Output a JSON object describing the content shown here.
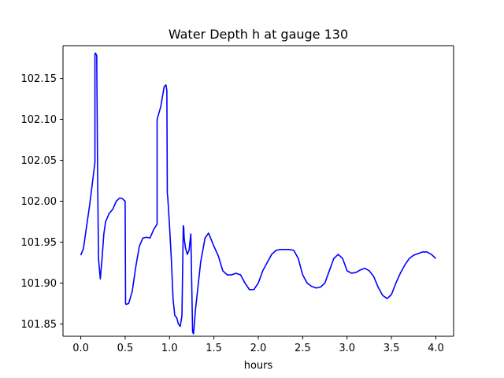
{
  "chart_data": {
    "type": "line",
    "title": "Water Depth h at gauge 130",
    "xlabel": "hours",
    "ylabel": "",
    "xlim": [
      -0.2,
      4.2
    ],
    "ylim": [
      101.835,
      102.19
    ],
    "x_ticks": [
      0.0,
      0.5,
      1.0,
      1.5,
      2.0,
      2.5,
      3.0,
      3.5,
      4.0
    ],
    "x_tick_labels": [
      "0.0",
      "0.5",
      "1.0",
      "1.5",
      "2.0",
      "2.5",
      "3.0",
      "3.5",
      "4.0"
    ],
    "y_ticks": [
      101.85,
      101.9,
      101.95,
      102.0,
      102.05,
      102.1,
      102.15
    ],
    "y_tick_labels": [
      "101.85",
      "101.90",
      "101.95",
      "102.00",
      "102.05",
      "102.10",
      "102.15"
    ],
    "grid": false,
    "series": [
      {
        "color": "#0000ff",
        "x": [
          0.0,
          0.03,
          0.06,
          0.1,
          0.14,
          0.16,
          0.16,
          0.165,
          0.18,
          0.19,
          0.2,
          0.22,
          0.24,
          0.26,
          0.28,
          0.32,
          0.36,
          0.4,
          0.44,
          0.47,
          0.5,
          0.505,
          0.51,
          0.54,
          0.58,
          0.62,
          0.66,
          0.7,
          0.74,
          0.78,
          0.82,
          0.86,
          0.86,
          0.9,
          0.94,
          0.96,
          0.97,
          0.975,
          0.98,
          1.0,
          1.02,
          1.04,
          1.06,
          1.08,
          1.1,
          1.12,
          1.14,
          1.155,
          1.16,
          1.165,
          1.18,
          1.2,
          1.22,
          1.24,
          1.26,
          1.27,
          1.28,
          1.29,
          1.295,
          1.32,
          1.35,
          1.4,
          1.44,
          1.47,
          1.5,
          1.55,
          1.6,
          1.65,
          1.7,
          1.75,
          1.8,
          1.85,
          1.9,
          1.95,
          2.0,
          2.05,
          2.1,
          2.15,
          2.2,
          2.25,
          2.3,
          2.35,
          2.4,
          2.45,
          2.5,
          2.55,
          2.6,
          2.65,
          2.7,
          2.75,
          2.8,
          2.85,
          2.9,
          2.95,
          3.0,
          3.05,
          3.1,
          3.15,
          3.2,
          3.25,
          3.3,
          3.35,
          3.4,
          3.45,
          3.5,
          3.55,
          3.6,
          3.65,
          3.7,
          3.75,
          3.8,
          3.85,
          3.9,
          3.95,
          4.0
        ],
        "y": [
          101.934,
          101.942,
          101.965,
          101.995,
          102.03,
          102.048,
          102.18,
          102.181,
          102.178,
          102.03,
          101.93,
          101.905,
          101.93,
          101.96,
          101.975,
          101.985,
          101.99,
          102.0,
          102.004,
          102.003,
          102.0,
          101.875,
          101.874,
          101.875,
          101.89,
          101.92,
          101.945,
          101.955,
          101.956,
          101.955,
          101.965,
          101.972,
          102.1,
          102.115,
          102.14,
          102.142,
          102.135,
          102.01,
          102.005,
          101.97,
          101.93,
          101.88,
          101.86,
          101.858,
          101.85,
          101.847,
          101.86,
          101.97,
          101.968,
          101.955,
          101.943,
          101.935,
          101.94,
          101.96,
          101.84,
          101.838,
          101.85,
          101.865,
          101.87,
          101.895,
          101.925,
          101.955,
          101.961,
          101.953,
          101.945,
          101.933,
          101.915,
          101.91,
          101.91,
          101.912,
          101.91,
          101.9,
          101.892,
          101.892,
          101.9,
          101.915,
          101.925,
          101.935,
          101.94,
          101.941,
          101.941,
          101.941,
          101.94,
          101.93,
          101.91,
          101.9,
          101.896,
          101.894,
          101.895,
          101.9,
          101.915,
          101.93,
          101.935,
          101.93,
          101.915,
          101.912,
          101.913,
          101.916,
          101.918,
          101.915,
          101.908,
          101.895,
          101.885,
          101.881,
          101.886,
          101.9,
          101.912,
          101.922,
          101.93,
          101.934,
          101.936,
          101.938,
          101.938,
          101.935,
          101.93
        ]
      }
    ]
  }
}
